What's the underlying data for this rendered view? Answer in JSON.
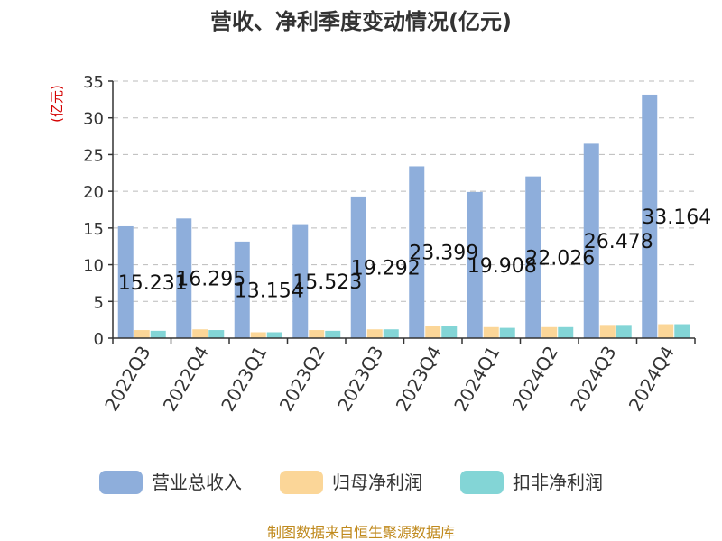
{
  "chart_data": {
    "type": "bar",
    "title": "营收、净利季度变动情况(亿元)",
    "ylabel": "(亿元)",
    "xlabel": "",
    "categories": [
      "2022Q3",
      "2022Q4",
      "2023Q1",
      "2023Q2",
      "2023Q3",
      "2023Q4",
      "2024Q1",
      "2024Q2",
      "2024Q3",
      "2024Q4"
    ],
    "ylim": [
      0,
      35
    ],
    "yticks": [
      0,
      5,
      10,
      15,
      20,
      25,
      30,
      35
    ],
    "grid": true,
    "legend_position": "bottom",
    "series": [
      {
        "name": "营业总收入",
        "color": "#8eaedb",
        "values": [
          15.231,
          16.295,
          13.154,
          15.523,
          19.292,
          23.399,
          19.908,
          22.026,
          26.478,
          33.164
        ],
        "data_labels": [
          "15.231",
          "16.295",
          "13.154",
          "15.523",
          "19.292",
          "23.399",
          "19.908",
          "22.026",
          "26.478",
          "33.164"
        ]
      },
      {
        "name": "归母净利润",
        "color": "#fbd698",
        "values": [
          1.1,
          1.2,
          0.8,
          1.1,
          1.2,
          1.7,
          1.5,
          1.5,
          1.8,
          1.9
        ]
      },
      {
        "name": "扣非净利润",
        "color": "#83d5d6",
        "values": [
          1.0,
          1.1,
          0.8,
          1.0,
          1.2,
          1.7,
          1.4,
          1.5,
          1.8,
          1.9
        ]
      }
    ]
  },
  "source": "制图数据来自恒生聚源数据库"
}
